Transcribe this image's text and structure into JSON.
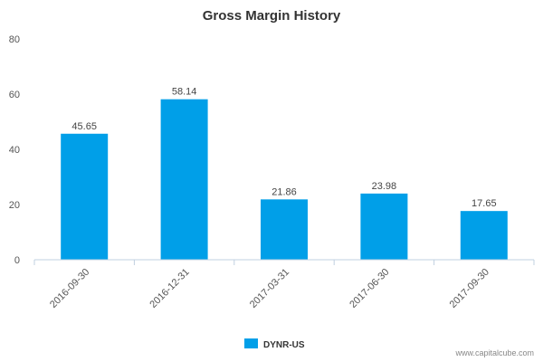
{
  "chart_data": {
    "type": "bar",
    "title": "Gross Margin History",
    "xlabel": "",
    "ylabel": "",
    "ylim": [
      0,
      80
    ],
    "yticks": [
      0,
      20,
      40,
      60,
      80
    ],
    "categories": [
      "2016-09-30",
      "2016-12-31",
      "2017-03-31",
      "2017-06-30",
      "2017-09-30"
    ],
    "series": [
      {
        "name": "DYNR-US",
        "values": [
          45.65,
          58.14,
          21.86,
          23.98,
          17.65
        ],
        "labels": [
          "45.65",
          "58.14",
          "21.86",
          "23.98",
          "17.65"
        ],
        "color": "#009fe8"
      }
    ],
    "grid": false,
    "legend_position": "bottom-center"
  },
  "credit": "www.capitalcube.com"
}
